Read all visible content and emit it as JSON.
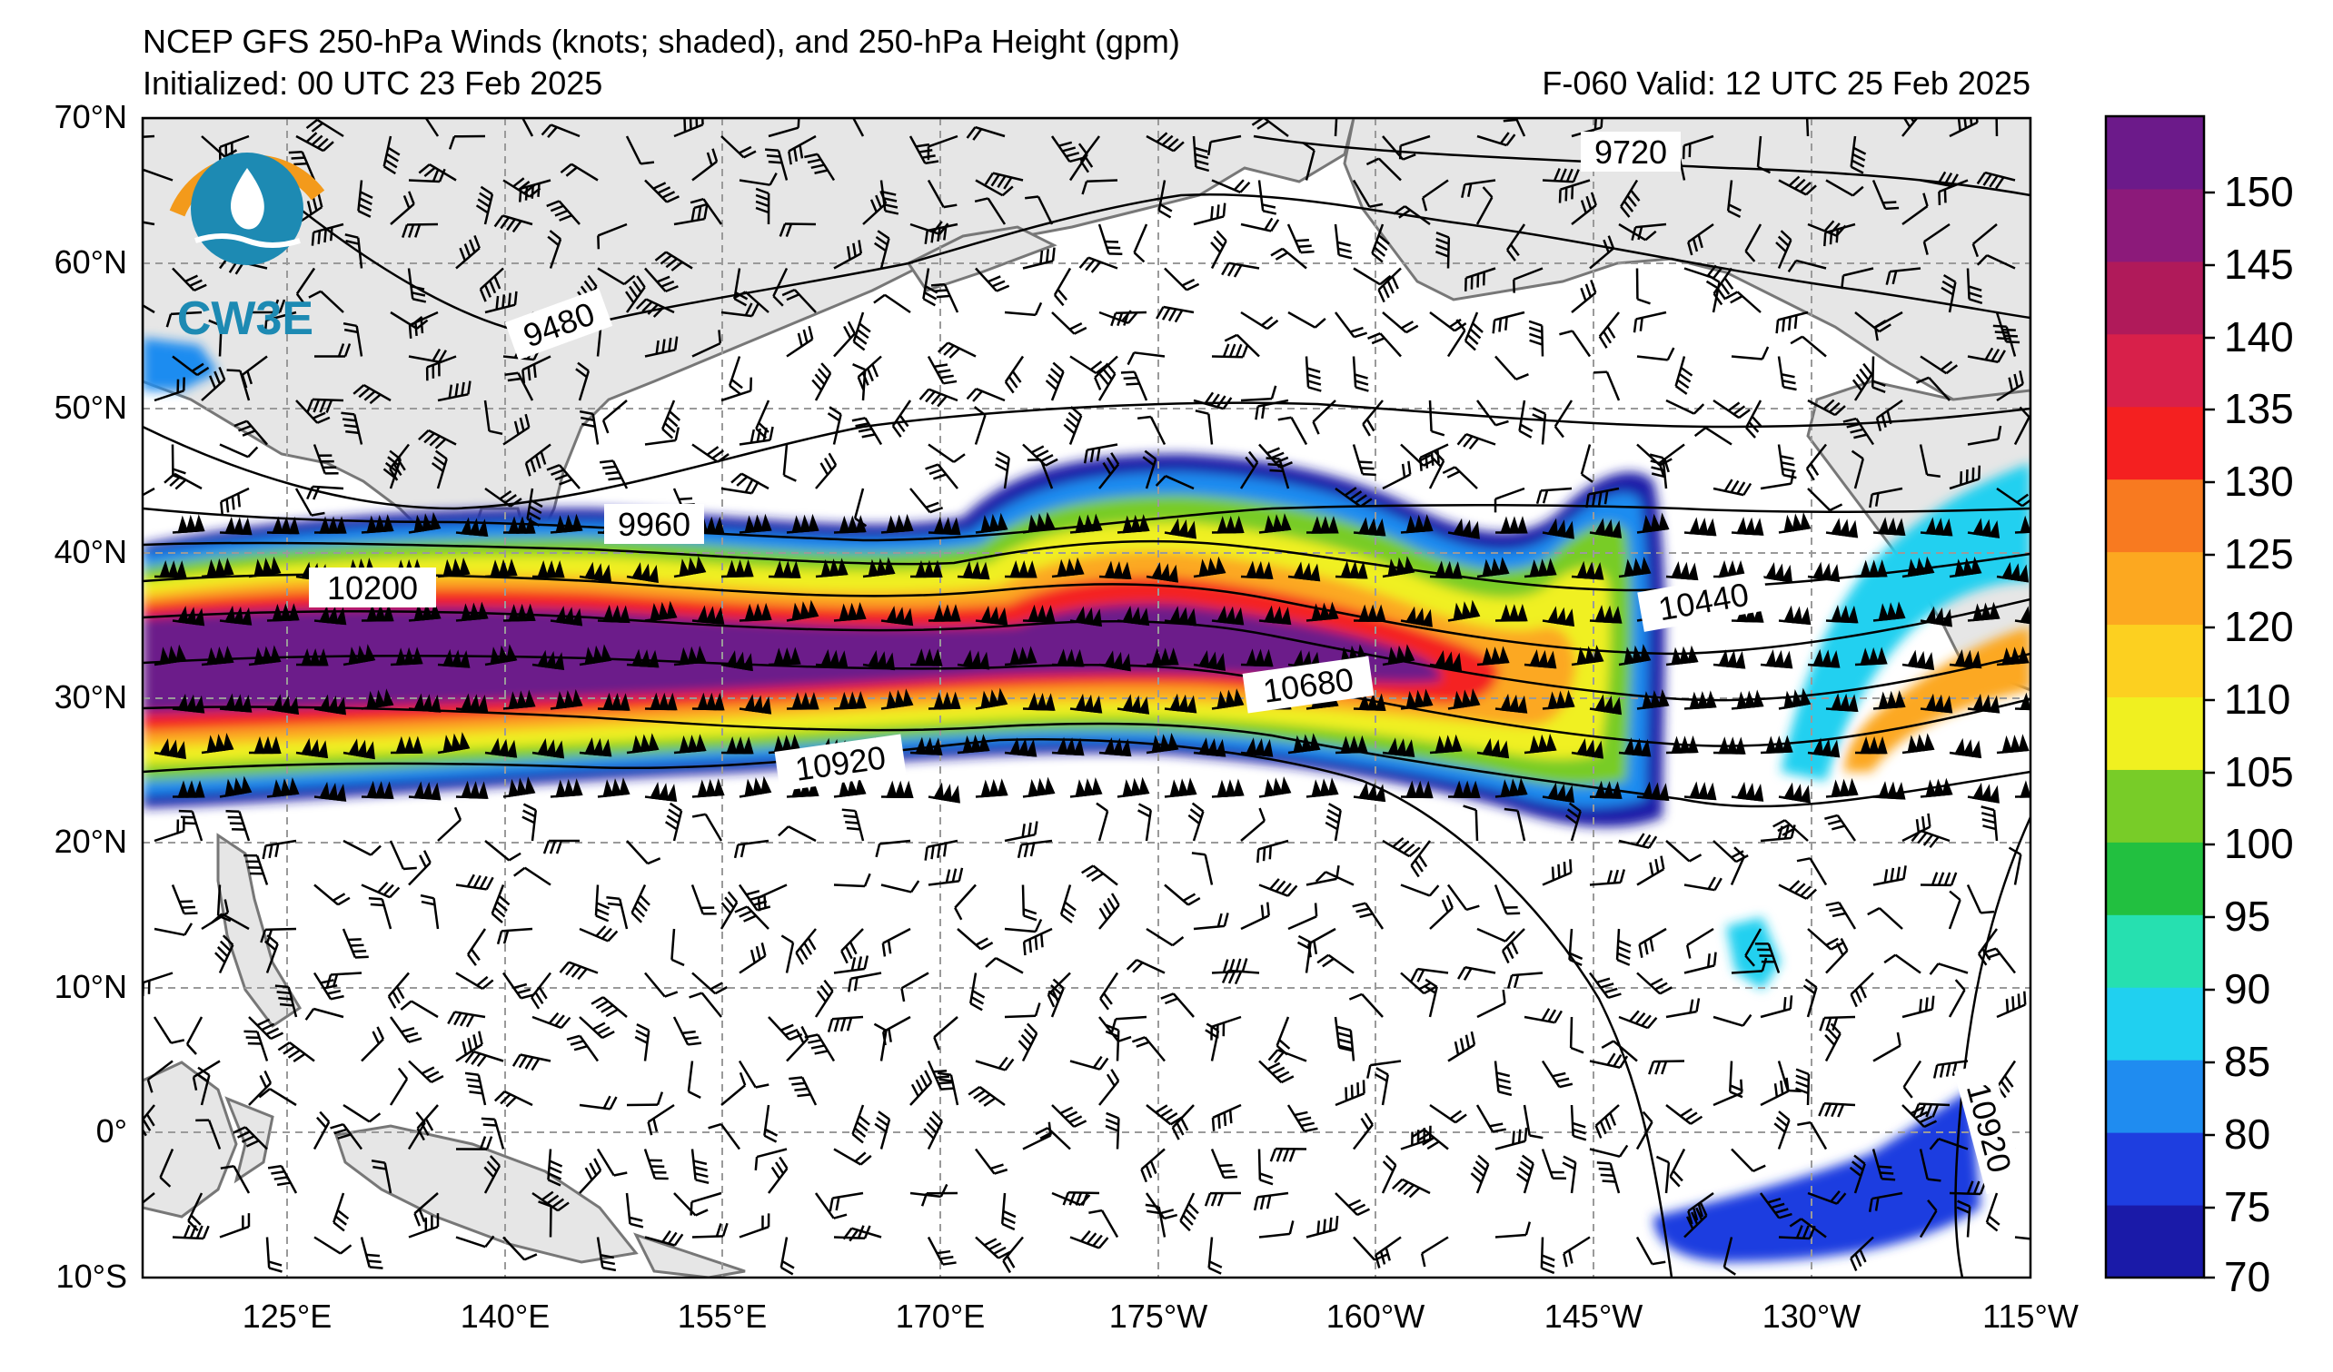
{
  "header": {
    "title": "NCEP GFS 250-hPa Winds (knots; shaded), and 250-hPa Height (gpm)",
    "initialized": "Initialized: 00 UTC 23 Feb 2025",
    "valid": "F-060  Valid: 12 UTC 25 Feb 2025"
  },
  "logo": {
    "text": "CW3E",
    "icon": "cw3e-water-drop-logo-icon"
  },
  "axes": {
    "lat_labels": [
      "70°N",
      "60°N",
      "50°N",
      "40°N",
      "30°N",
      "20°N",
      "10°N",
      "0°",
      "10°S"
    ],
    "lon_labels": [
      "125°E",
      "140°E",
      "155°E",
      "170°E",
      "175°W",
      "160°W",
      "145°W",
      "130°W",
      "115°W"
    ]
  },
  "colorbar": {
    "labels": [
      "150",
      "145",
      "140",
      "135",
      "130",
      "125",
      "120",
      "110",
      "105",
      "100",
      "95",
      "90",
      "85",
      "80",
      "75",
      "70"
    ],
    "colors": [
      "#1a1aa8",
      "#1e3ee0",
      "#1f8cf0",
      "#20d0f0",
      "#26e0b0",
      "#22c040",
      "#78cc28",
      "#f0f020",
      "#fcd020",
      "#fca820",
      "#f87a20",
      "#f42020",
      "#d8204a",
      "#b01a5a",
      "#8c1a7a",
      "#6c1a8a"
    ]
  },
  "contours": {
    "labels": [
      "9720",
      "9480",
      "9960",
      "10200",
      "10440",
      "10680",
      "10920",
      "10920"
    ]
  },
  "colors": {
    "land": "#e6e6e6",
    "coast": "#777777",
    "grid": "#9a9a9a"
  }
}
